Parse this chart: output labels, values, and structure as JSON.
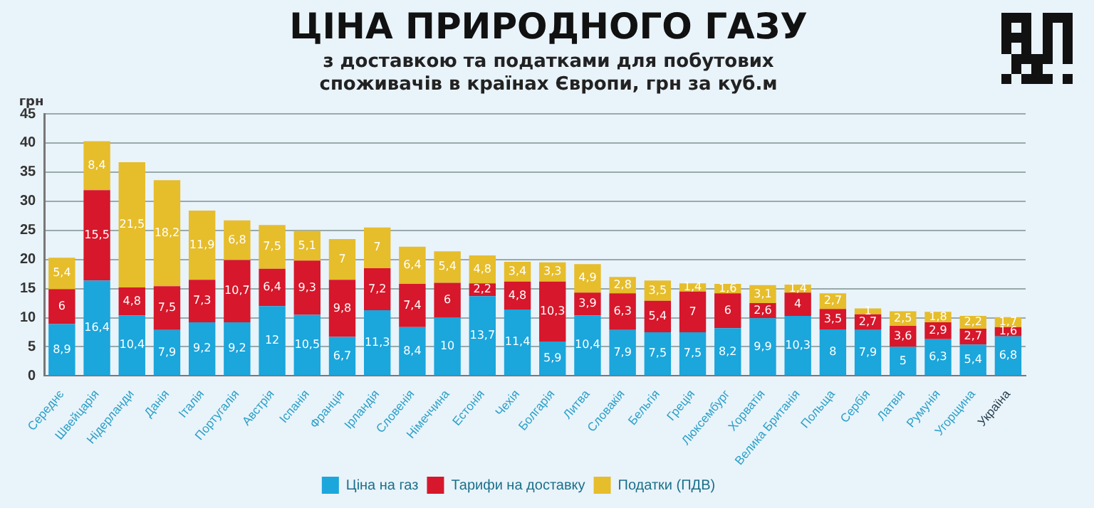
{
  "chart_data": {
    "type": "bar",
    "stacked": true,
    "title": "ЦІНА ПРИРОДНОГО ГАЗУ",
    "subtitle": "з доставкою та податками для побутових споживачів в країнах Європи, грн за куб.м",
    "ylabel": "грн",
    "categories": [
      "Середнє",
      "Швейцарія",
      "Нідерланди",
      "Данія",
      "Італія",
      "Португалія",
      "Австрія",
      "Іспанія",
      "Франція",
      "Ірландія",
      "Словенія",
      "Німеччина",
      "Естонія",
      "Чехія",
      "Болгарія",
      "Литва",
      "Словакія",
      "Бельгія",
      "Греція",
      "Люксембург",
      "Хорватія",
      "Велика Британія",
      "Польща",
      "Сербія",
      "Латвія",
      "Румунія",
      "Угорщина",
      "Україна"
    ],
    "series": [
      {
        "name": "Ціна на газ",
        "color": "#1ba6dc",
        "values": [
          8.9,
          16.4,
          10.4,
          7.9,
          9.2,
          9.2,
          12,
          10.5,
          6.7,
          11.3,
          8.4,
          10,
          13.7,
          11.4,
          5.9,
          10.4,
          7.9,
          7.5,
          7.5,
          8.2,
          9.9,
          10.3,
          8,
          7.9,
          5,
          6.3,
          5.4,
          6.8
        ],
        "value_labels": [
          "8,9",
          "16,4",
          "10,4",
          "7,9",
          "9,2",
          "9,2",
          "12",
          "10,5",
          "6,7",
          "11,3",
          "8,4",
          "10",
          "13,7",
          "11,4",
          "5,9",
          "10,4",
          "7,9",
          "7,5",
          "7,5",
          "8,2",
          "9,9",
          "10,3",
          "8",
          "7,9",
          "5",
          "6,3",
          "5,4",
          "6,8"
        ]
      },
      {
        "name": "Тарифи на доставку",
        "color": "#d7172b",
        "values": [
          6,
          15.5,
          4.8,
          7.5,
          7.3,
          10.7,
          6.4,
          9.3,
          9.8,
          7.2,
          7.4,
          6,
          2.2,
          4.8,
          10.3,
          3.9,
          6.3,
          5.4,
          7,
          6,
          2.6,
          4,
          3.5,
          2.7,
          3.6,
          2.9,
          2.7,
          1.6
        ],
        "value_labels": [
          "6",
          "15,5",
          "4,8",
          "7,5",
          "7,3",
          "10,7",
          "6,4",
          "9,3",
          "9,8",
          "7,2",
          "7,4",
          "6",
          "2,2",
          "4,8",
          "10,3",
          "3,9",
          "6,3",
          "5,4",
          "7",
          "6",
          "2,6",
          "4",
          "3,5",
          "2,7",
          "3,6",
          "2,9",
          "2,7",
          "1,6"
        ]
      },
      {
        "name": "Податки (ПДВ)",
        "color": "#e6bd2b",
        "values": [
          5.4,
          8.4,
          21.5,
          18.2,
          11.9,
          6.8,
          7.5,
          5.1,
          7,
          7,
          6.4,
          5.4,
          4.8,
          3.4,
          3.3,
          4.9,
          2.8,
          3.5,
          1.4,
          1.6,
          3.1,
          1.4,
          2.7,
          1,
          2.5,
          1.8,
          2.2,
          1.7
        ],
        "value_labels": [
          "5,4",
          "8,4",
          "21,5",
          "18,2",
          "11,9",
          "6,8",
          "7,5",
          "5,1",
          "7",
          "7",
          "6,4",
          "5,4",
          "4,8",
          "3,4",
          "3,3",
          "4,9",
          "2,8",
          "3,5",
          "1,4",
          "1,6",
          "3,1",
          "1,4",
          "2,7",
          "1",
          "2,5",
          "1,8",
          "2,2",
          "1,7"
        ]
      }
    ],
    "ylim": [
      0,
      45
    ],
    "yticks": [
      0,
      5,
      10,
      15,
      20,
      25,
      30,
      35,
      40,
      45
    ],
    "grid": "y",
    "legend": "bottom"
  }
}
